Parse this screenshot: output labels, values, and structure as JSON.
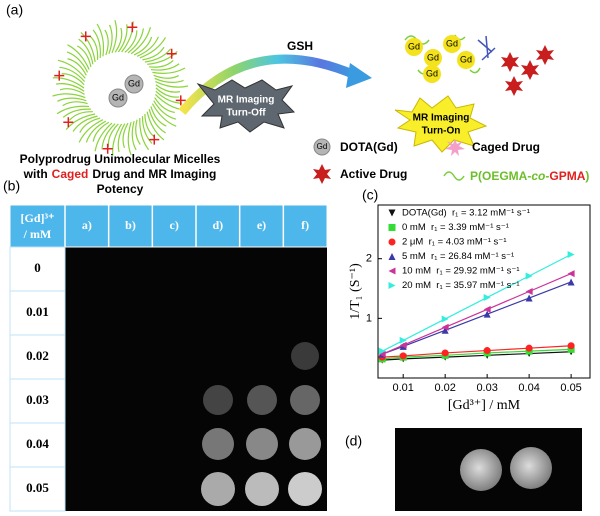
{
  "panel_a": {
    "label": "(a)",
    "gsh": "GSH",
    "gd": "Gd",
    "turn_off": [
      "MR Imaging",
      "Turn-Off"
    ],
    "turn_on": [
      "MR Imaging",
      "Turn-On"
    ],
    "caption": {
      "line1": "Polyprodrug Unimolecular Micelles",
      "line2_start": "with",
      "line2_red": "Caged",
      "line2_end": "Drug and MR Imaging",
      "line3": "Potency"
    },
    "legend": {
      "dota": "DOTA(Gd)",
      "caged": "Caged Drug",
      "active": "Active Drug",
      "polymer": {
        "start": "P(OEGMA-",
        "italic": "co",
        "dash": "-",
        "red": "GPMA",
        "end": ")"
      }
    }
  },
  "panel_b": {
    "label": "(b)",
    "header": [
      "[Gd]³⁺",
      "/ mM"
    ],
    "columns": [
      "a)",
      "b)",
      "c)",
      "d)",
      "e)",
      "f)"
    ],
    "rows": [
      "0",
      "0.01",
      "0.02",
      "0.03",
      "0.04",
      "0.05"
    ]
  },
  "chart_data": {
    "type": "line",
    "panel_label": "(c)",
    "x_label": "[Gd³⁺] / mM",
    "y_label": "1/T₁ (S⁻¹)",
    "x": [
      0.005,
      0.01,
      0.02,
      0.03,
      0.04,
      0.05
    ],
    "xlim": [
      0.004,
      0.0545
    ],
    "xticks": [
      0.01,
      0.02,
      0.03,
      0.04,
      0.05
    ],
    "ylim": [
      0,
      2.9
    ],
    "yticks": [
      1,
      2
    ],
    "series": [
      {
        "name": "DOTA(Gd)  r₁ = 3.12 mM⁻¹ s⁻¹",
        "color": "#111111",
        "marker": "v",
        "values": [
          0.3,
          0.32,
          0.35,
          0.38,
          0.41,
          0.44
        ]
      },
      {
        "name": "0 mM  r₁ = 3.39 mM⁻¹ s⁻¹",
        "color": "#33dd33",
        "marker": "s",
        "values": [
          0.32,
          0.35,
          0.38,
          0.42,
          0.45,
          0.48
        ]
      },
      {
        "name": "2 μM  r₁ = 4.03 mM⁻¹ s⁻¹",
        "color": "#ff2222",
        "marker": "o",
        "values": [
          0.35,
          0.37,
          0.42,
          0.46,
          0.5,
          0.54
        ]
      },
      {
        "name": "5 mM  r₁ = 26.84 mM⁻¹ s⁻¹",
        "color": "#3a3aa8",
        "marker": "^",
        "values": [
          0.4,
          0.53,
          0.8,
          1.07,
          1.34,
          1.61
        ]
      },
      {
        "name": "10 mM  r₁ = 29.92 mM⁻¹ s⁻¹",
        "color": "#cc3399",
        "marker": "<",
        "values": [
          0.4,
          0.55,
          0.85,
          1.15,
          1.45,
          1.75
        ]
      },
      {
        "name": "20 mM  r₁ = 35.97 mM⁻¹ s⁻¹",
        "color": "#33eedd",
        "marker": ">",
        "values": [
          0.45,
          0.63,
          0.99,
          1.35,
          1.71,
          2.07
        ]
      }
    ]
  },
  "panel_d": {
    "label": "(d)"
  }
}
